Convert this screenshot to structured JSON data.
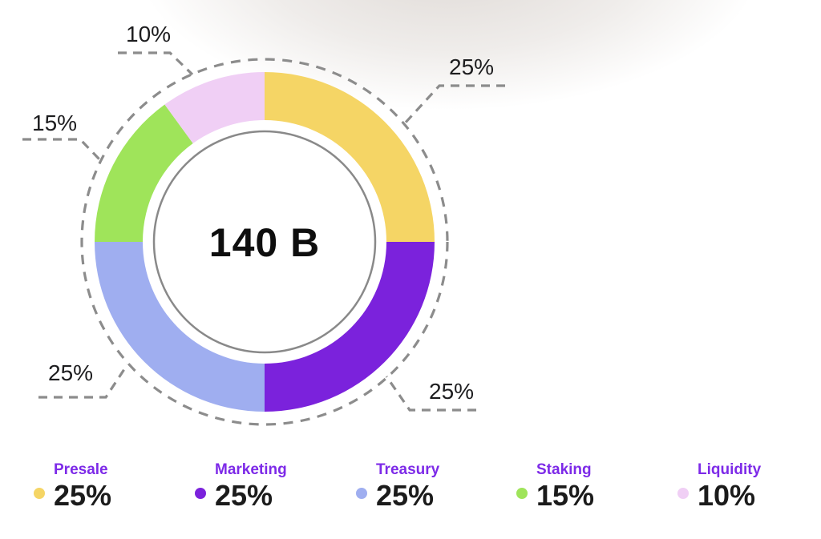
{
  "chart_data": {
    "type": "pie",
    "variant": "donut",
    "title": "",
    "center_label": "140 B",
    "start_angle_deg": -90,
    "direction": "clockwise",
    "segments": [
      {
        "name": "Presale",
        "value": 25,
        "pct_text": "25%",
        "color": "#F5D565"
      },
      {
        "name": "Marketing",
        "value": 25,
        "pct_text": "25%",
        "color": "#7B22DC"
      },
      {
        "name": "Treasury",
        "value": 25,
        "pct_text": "25%",
        "color": "#9FAEF0"
      },
      {
        "name": "Staking",
        "value": 15,
        "pct_text": "15%",
        "color": "#9FE45A"
      },
      {
        "name": "Liquidity",
        "value": 10,
        "pct_text": "10%",
        "color": "#F0CFF5"
      }
    ],
    "legend_position": "bottom",
    "legend_label_color": "#7d2ae8",
    "outline_color": "#8c8c8c",
    "inner_ring_color": "#898989"
  }
}
